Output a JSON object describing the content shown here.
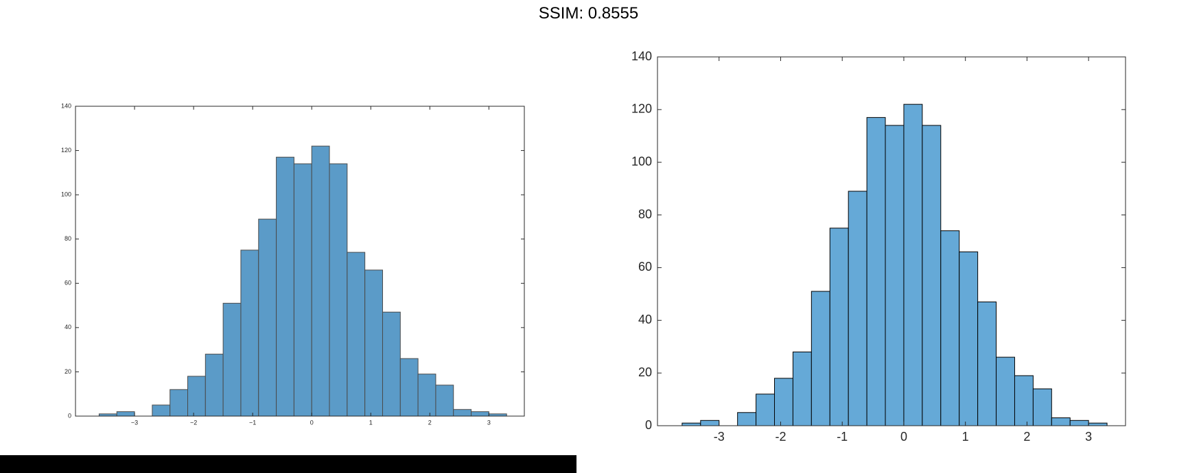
{
  "header": {
    "title": "SSIM: 0.8555"
  },
  "chart_data": [
    {
      "type": "bar",
      "bin_edges": [
        -3.6,
        -3.3,
        -3.0,
        -2.7,
        -2.4,
        -2.1,
        -1.8,
        -1.5,
        -1.2,
        -0.9,
        -0.6,
        -0.3,
        0.0,
        0.3,
        0.6,
        0.9,
        1.2,
        1.5,
        1.8,
        2.1,
        2.4,
        2.7,
        3.0,
        3.3
      ],
      "values": [
        1,
        2,
        0,
        5,
        12,
        18,
        28,
        51,
        75,
        89,
        117,
        114,
        122,
        114,
        74,
        66,
        47,
        26,
        19,
        14,
        3,
        2,
        1
      ],
      "xlim": [
        -4.0,
        3.6
      ],
      "ylim": [
        0,
        140
      ],
      "xticks": [
        -3,
        -2,
        -1,
        0,
        1,
        2,
        3
      ],
      "xtick_labels": [
        "−3",
        "−2",
        "−1",
        "0",
        "1",
        "2",
        "3"
      ],
      "yticks": [
        0,
        20,
        40,
        60,
        80,
        100,
        120,
        140
      ],
      "ytick_labels": [
        "0",
        "20",
        "40",
        "60",
        "80",
        "100",
        "120",
        "140"
      ],
      "bar_color": "#5B9BC8",
      "edge_color": "#4a4a4a",
      "grid": false
    },
    {
      "type": "bar",
      "bin_edges": [
        -3.6,
        -3.3,
        -3.0,
        -2.7,
        -2.4,
        -2.1,
        -1.8,
        -1.5,
        -1.2,
        -0.9,
        -0.6,
        -0.3,
        0.0,
        0.3,
        0.6,
        0.9,
        1.2,
        1.5,
        1.8,
        2.1,
        2.4,
        2.7,
        3.0,
        3.3
      ],
      "values": [
        1,
        2,
        0,
        5,
        12,
        18,
        28,
        51,
        75,
        89,
        117,
        114,
        122,
        114,
        74,
        66,
        47,
        26,
        19,
        14,
        3,
        2,
        1
      ],
      "xlim": [
        -4.0,
        3.6
      ],
      "ylim": [
        0,
        140
      ],
      "xticks": [
        -3,
        -2,
        -1,
        0,
        1,
        2,
        3
      ],
      "xtick_labels": [
        "-3",
        "-2",
        "-1",
        "0",
        "1",
        "2",
        "3"
      ],
      "yticks": [
        0,
        20,
        40,
        60,
        80,
        100,
        120,
        140
      ],
      "ytick_labels": [
        "0",
        "20",
        "40",
        "60",
        "80",
        "100",
        "120",
        "140"
      ],
      "bar_color": "#65A9D7",
      "edge_color": "#000000",
      "grid": false
    }
  ]
}
